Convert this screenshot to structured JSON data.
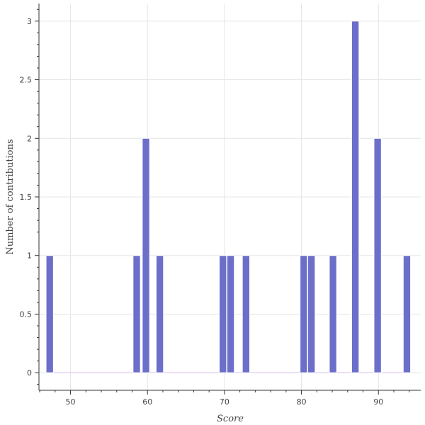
{
  "chart_data": {
    "type": "bar",
    "title": "",
    "xlabel": "Score",
    "ylabel": "Number of contributions",
    "xlim": [
      45.9,
      95.5
    ],
    "ylim": [
      -0.15,
      3.15
    ],
    "x_ticks": [
      50,
      60,
      70,
      80,
      90
    ],
    "y_ticks": [
      0,
      0.5,
      1,
      1.5,
      2,
      2.5,
      3
    ],
    "y_tick_labels": [
      "0",
      "0.5",
      "1",
      "1.5",
      "2",
      "2.5",
      "3"
    ],
    "grid": true,
    "legend": "none",
    "bin_width": 0.95,
    "bars": [
      {
        "x": 47.3,
        "value": 1
      },
      {
        "x": 58.6,
        "value": 1
      },
      {
        "x": 59.8,
        "value": 2
      },
      {
        "x": 61.6,
        "value": 1
      },
      {
        "x": 69.8,
        "value": 1
      },
      {
        "x": 70.8,
        "value": 1
      },
      {
        "x": 72.8,
        "value": 1
      },
      {
        "x": 80.3,
        "value": 1
      },
      {
        "x": 81.3,
        "value": 1
      },
      {
        "x": 84.1,
        "value": 1
      },
      {
        "x": 87.0,
        "value": 3
      },
      {
        "x": 89.9,
        "value": 2
      },
      {
        "x": 93.7,
        "value": 1
      }
    ],
    "colors": {
      "bar_fill": "#6b6fc9",
      "bar_stroke": "#ffffff",
      "baseline": "#e6d3f2",
      "grid": "#e5e5e5",
      "axis": "#333333"
    }
  }
}
